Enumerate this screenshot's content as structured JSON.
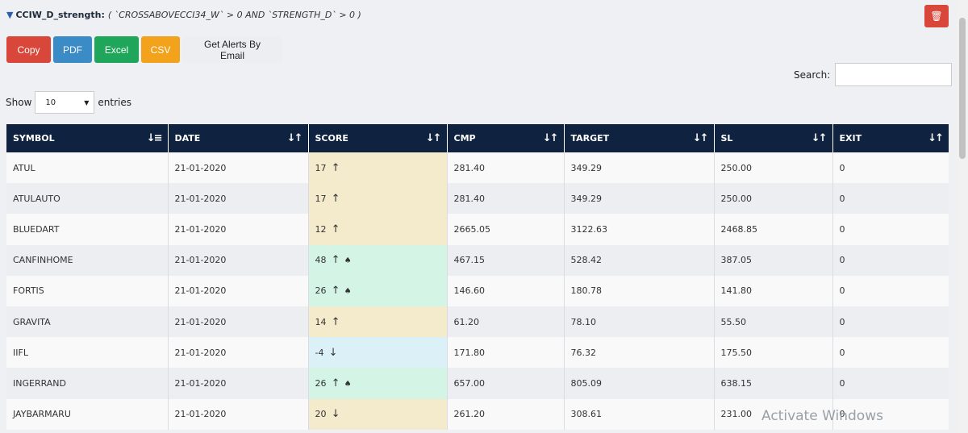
{
  "filter": {
    "icon": "filter-icon",
    "name": "CCIW_D_strength:",
    "expression": "( `CROSSABOVECCI34_W` > 0 AND `STRENGTH_D` > 0 )"
  },
  "delete_icon": "trash-icon",
  "buttons": {
    "copy": "Copy",
    "pdf": "PDF",
    "excel": "Excel",
    "csv": "CSV",
    "alerts": "Get Alerts By Email"
  },
  "search": {
    "label": "Search:",
    "value": ""
  },
  "length": {
    "show": "Show",
    "value": "10",
    "entries": "entries"
  },
  "columns": [
    "SYMBOL",
    "DATE",
    "SCORE",
    "CMP",
    "TARGET",
    "SL",
    "EXIT"
  ],
  "rows": [
    {
      "symbol": "ATUL",
      "date": "21-01-2020",
      "score": "17",
      "dir": "up",
      "spade": false,
      "cmp": "281.40",
      "target": "349.29",
      "sl": "250.00",
      "exit": "0"
    },
    {
      "symbol": "ATULAUTO",
      "date": "21-01-2020",
      "score": "17",
      "dir": "up",
      "spade": false,
      "cmp": "281.40",
      "target": "349.29",
      "sl": "250.00",
      "exit": "0"
    },
    {
      "symbol": "BLUEDART",
      "date": "21-01-2020",
      "score": "12",
      "dir": "up",
      "spade": false,
      "cmp": "2665.05",
      "target": "3122.63",
      "sl": "2468.85",
      "exit": "0"
    },
    {
      "symbol": "CANFINHOME",
      "date": "21-01-2020",
      "score": "48",
      "dir": "up",
      "spade": true,
      "cmp": "467.15",
      "target": "528.42",
      "sl": "387.05",
      "exit": "0"
    },
    {
      "symbol": "FORTIS",
      "date": "21-01-2020",
      "score": "26",
      "dir": "up",
      "spade": true,
      "cmp": "146.60",
      "target": "180.78",
      "sl": "141.80",
      "exit": "0"
    },
    {
      "symbol": "GRAVITA",
      "date": "21-01-2020",
      "score": "14",
      "dir": "up",
      "spade": false,
      "cmp": "61.20",
      "target": "78.10",
      "sl": "55.50",
      "exit": "0"
    },
    {
      "symbol": "IIFL",
      "date": "21-01-2020",
      "score": "-4",
      "dir": "down",
      "spade": false,
      "cmp": "171.80",
      "target": "76.32",
      "sl": "175.50",
      "exit": "0"
    },
    {
      "symbol": "INGERRAND",
      "date": "21-01-2020",
      "score": "26",
      "dir": "up",
      "spade": true,
      "cmp": "657.00",
      "target": "805.09",
      "sl": "638.15",
      "exit": "0"
    },
    {
      "symbol": "JAYBARMARU",
      "date": "21-01-2020",
      "score": "20",
      "dir": "down",
      "spade": false,
      "cmp": "261.20",
      "target": "308.61",
      "sl": "231.00",
      "exit": "0"
    }
  ],
  "watermark": "Activate Windows",
  "colors": {
    "header_bg": "#0f2240",
    "score_up_bg": "#f3ebcc",
    "score_strong_bg": "#d4f5e6",
    "score_down_bg": "#dcf0f7"
  }
}
